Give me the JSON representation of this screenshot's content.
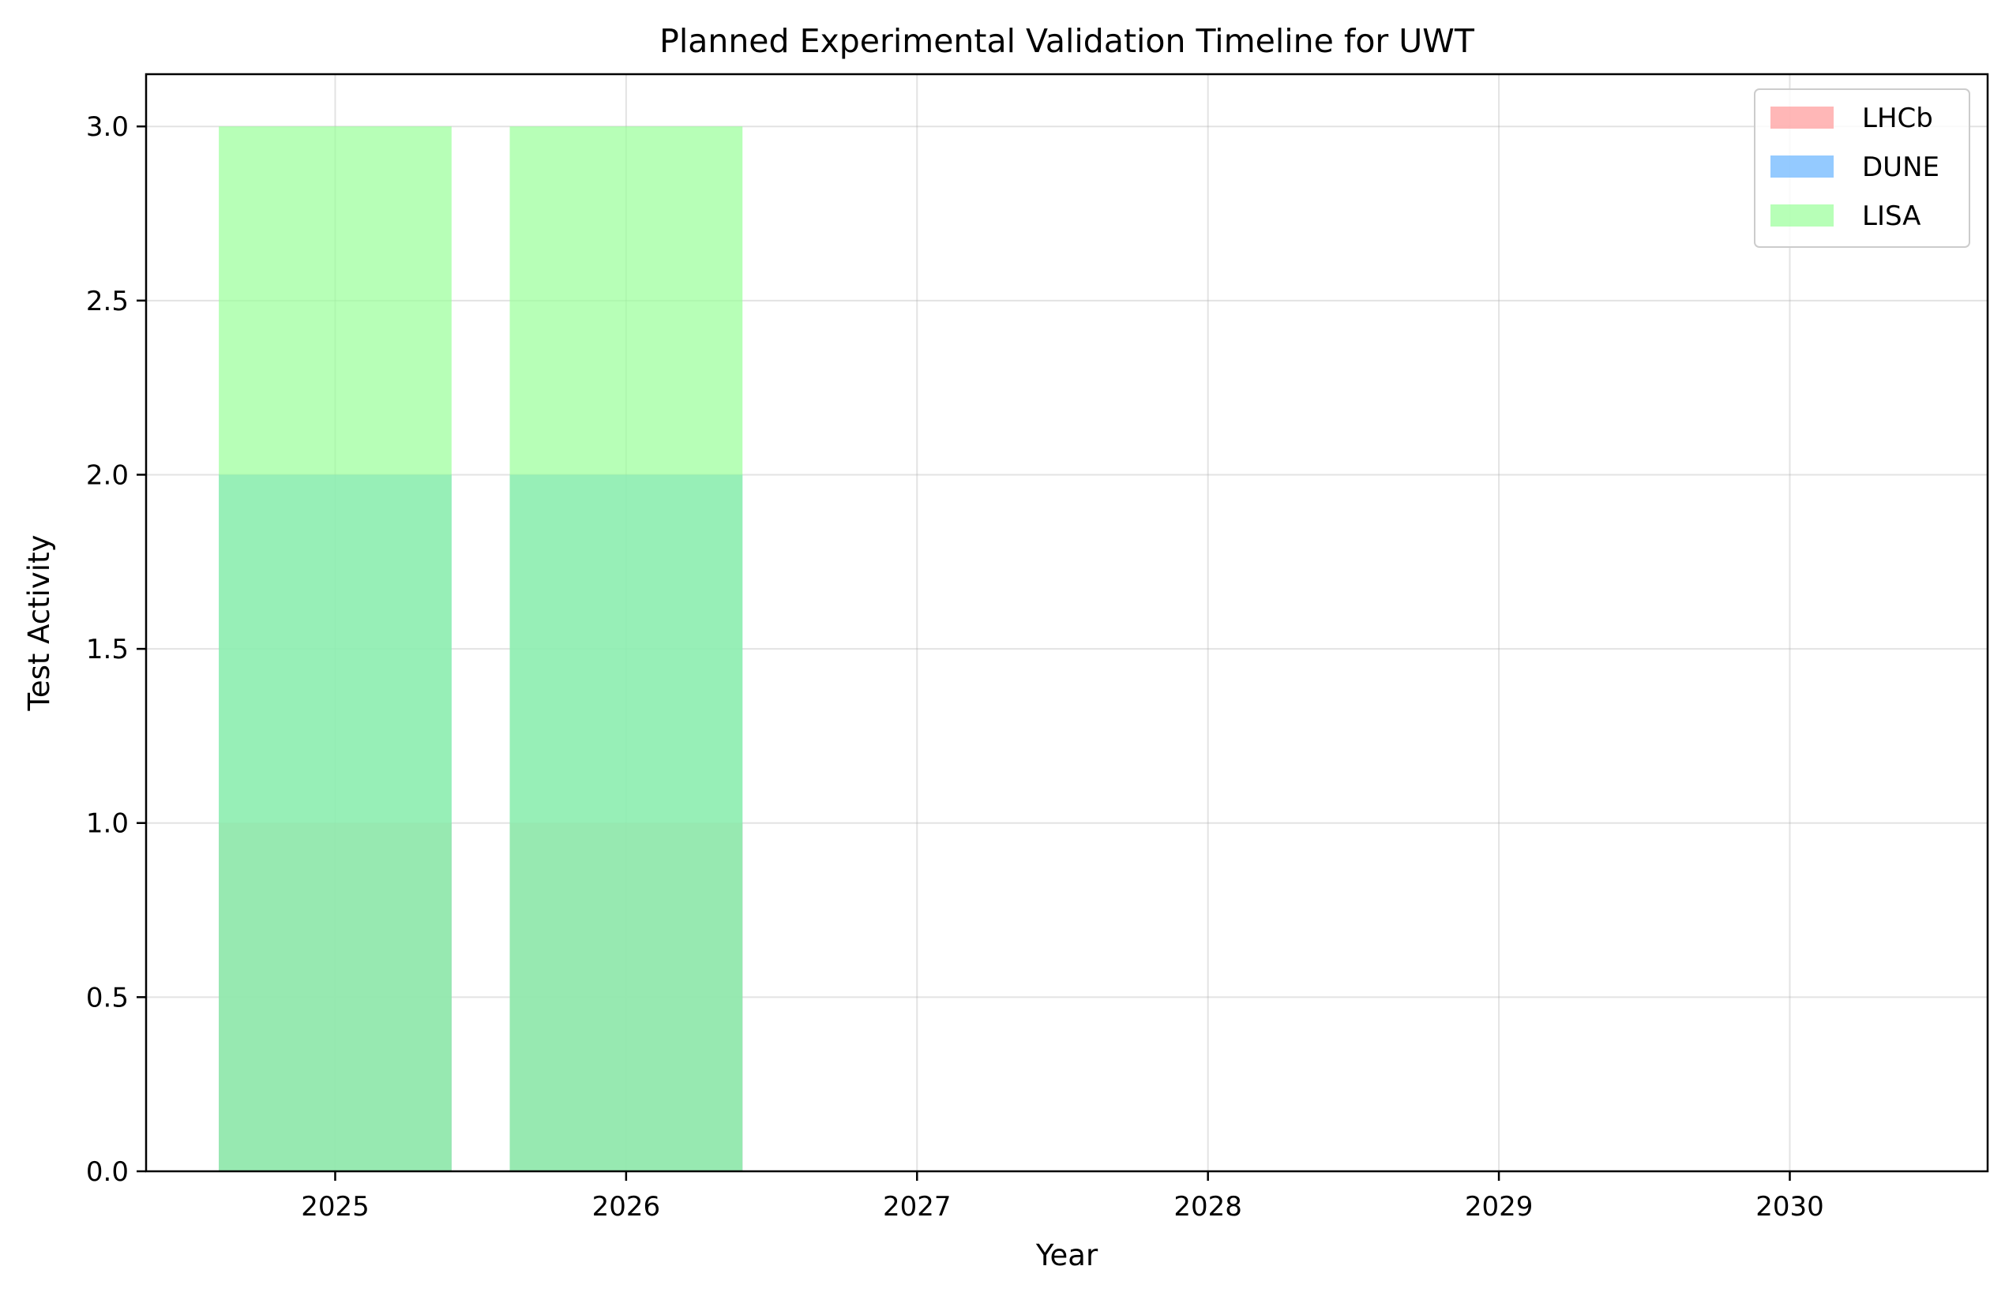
{
  "chart_data": {
    "type": "bar",
    "title": "Planned Experimental Validation Timeline for UWT",
    "xlabel": "Year",
    "ylabel": "Test Activity",
    "categories": [
      "2025",
      "2026",
      "2027",
      "2028",
      "2029",
      "2030"
    ],
    "x": [
      2025,
      2026,
      2027,
      2028,
      2029,
      2030
    ],
    "xlim": [
      2024.35,
      2030.68
    ],
    "ylim": [
      0,
      3.15
    ],
    "yticks": [
      0.0,
      0.5,
      1.0,
      1.5,
      2.0,
      2.5,
      3.0
    ],
    "ytick_labels": [
      "0.0",
      "0.5",
      "1.0",
      "1.5",
      "2.0",
      "2.5",
      "3.0"
    ],
    "grid": true,
    "legend_position": "top-right",
    "bar_overlay": "overlapping, semi-transparent",
    "series": [
      {
        "name": "LHCb",
        "color": "#ff9999",
        "values": [
          1,
          1,
          0,
          0,
          0,
          0
        ]
      },
      {
        "name": "DUNE",
        "color": "#66b3ff",
        "values": [
          2,
          2,
          0,
          0,
          0,
          0
        ]
      },
      {
        "name": "LISA",
        "color": "#99ff99",
        "values": [
          3,
          3,
          0,
          0,
          0,
          0
        ]
      }
    ]
  }
}
